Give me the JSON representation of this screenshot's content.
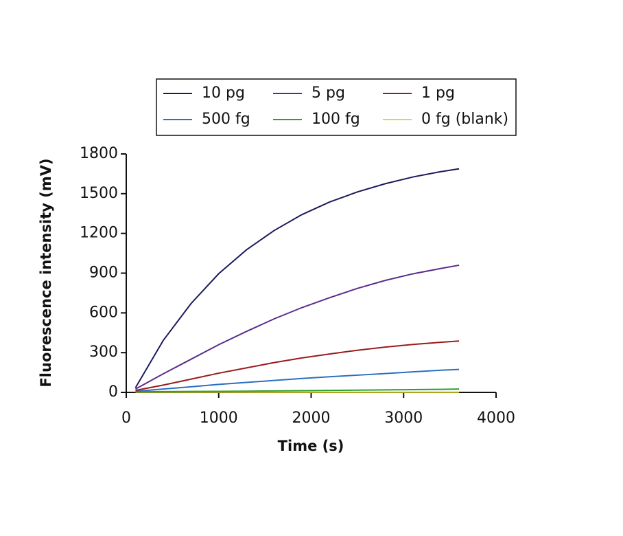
{
  "chart_data": {
    "type": "line",
    "x_label": "Time (s)",
    "y_label": "Fluorescence intensity (mV)",
    "x": [
      100,
      400,
      700,
      1000,
      1300,
      1600,
      1900,
      2200,
      2500,
      2800,
      3100,
      3400,
      3600
    ],
    "series": [
      {
        "name": "10 pg",
        "color": "#1b1a5c",
        "values": [
          35,
          392,
          670,
          896,
          1076,
          1222,
          1342,
          1437,
          1513,
          1575,
          1626,
          1666,
          1688
        ]
      },
      {
        "name": "5 pg",
        "color": "#5a2d8c",
        "values": [
          25,
          140,
          250,
          360,
          460,
          555,
          640,
          715,
          785,
          845,
          895,
          935,
          960
        ]
      },
      {
        "name": "1 pg",
        "color": "#9a1a1a",
        "values": [
          15,
          55,
          100,
          145,
          185,
          225,
          260,
          290,
          318,
          342,
          362,
          378,
          388
        ]
      },
      {
        "name": "500 fg",
        "color": "#2a6fc2",
        "values": [
          8,
          25,
          42,
          60,
          75,
          90,
          105,
          118,
          130,
          142,
          155,
          167,
          173
        ]
      },
      {
        "name": "100 fg",
        "color": "#2e9e2e",
        "values": [
          5,
          6,
          7,
          8,
          9,
          11,
          13,
          15,
          17,
          19,
          21,
          23,
          25
        ]
      },
      {
        "name": "0 fg (blank)",
        "color": "#e6d72a",
        "values": [
          2,
          2,
          2,
          2,
          2,
          2,
          2,
          2,
          2,
          2,
          2,
          2,
          2
        ]
      }
    ],
    "xlim": [
      0,
      4000
    ],
    "xticks": [
      0,
      1000,
      2000,
      3000,
      4000
    ],
    "ylim": [
      0,
      1800
    ],
    "yticks": [
      0,
      300,
      600,
      900,
      1200,
      1500,
      1800
    ],
    "grid": false
  }
}
